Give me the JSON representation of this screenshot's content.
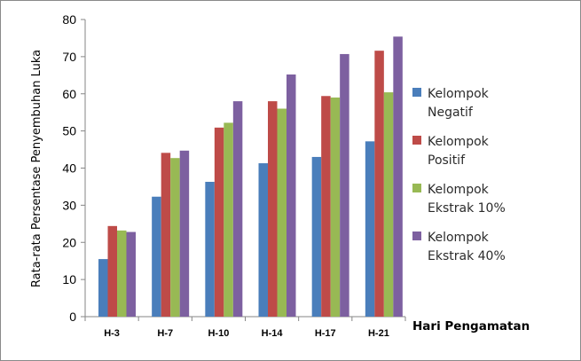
{
  "chart_data": {
    "type": "bar",
    "categories": [
      "H-3",
      "H-7",
      "H-10",
      "H-14",
      "H-17",
      "H-21"
    ],
    "series": [
      {
        "name": "Kelompok Negatif",
        "legend_lines": [
          "Kelompok",
          "Negatif"
        ],
        "color": "#4a7ebb",
        "values": [
          15.5,
          32.3,
          36.3,
          41.3,
          43,
          47.2
        ]
      },
      {
        "name": "Kelompok Positif",
        "legend_lines": [
          "Kelompok",
          "Positif"
        ],
        "color": "#be4b48",
        "values": [
          24.4,
          44.1,
          50.9,
          58,
          59.4,
          71.6
        ]
      },
      {
        "name": "Kelompok Ekstrak 10%",
        "legend_lines": [
          "Kelompok",
          "Ekstrak 10%"
        ],
        "color": "#98b954",
        "values": [
          23.2,
          42.7,
          52.2,
          56,
          59,
          60.4
        ]
      },
      {
        "name": "Kelompok Ekstrak 40%",
        "legend_lines": [
          "Kelompok",
          "Ekstrak 40%"
        ],
        "color": "#7d60a0",
        "values": [
          22.8,
          44.7,
          58,
          65.2,
          70.7,
          75.4
        ]
      }
    ],
    "yticks": [
      0,
      10,
      20,
      30,
      40,
      50,
      60,
      70,
      80
    ],
    "ylim": [
      0,
      80
    ],
    "ylabel": "Rata-rata Persentase Penyembuhan Luka",
    "xlabel": "Hari Pengamatan",
    "legend_position": "right",
    "grid": false
  }
}
